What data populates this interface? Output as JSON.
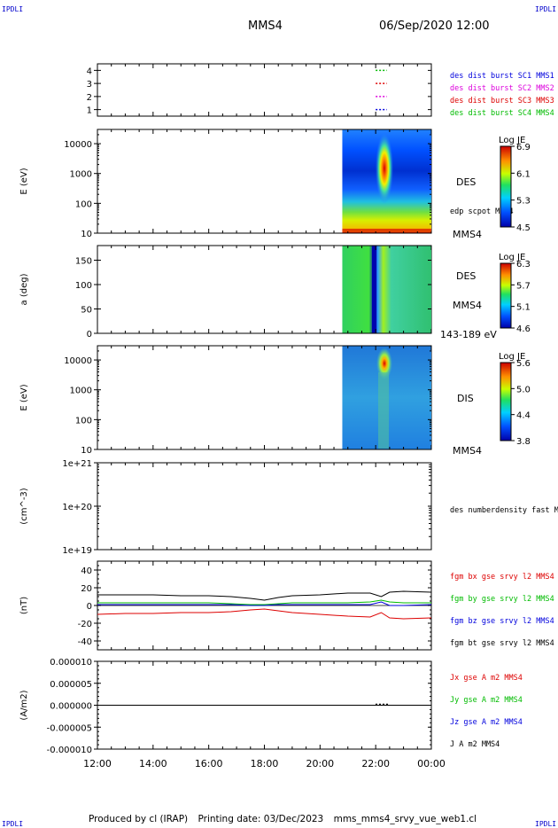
{
  "corner_tags": [
    "IPDLI",
    "IPDLI",
    "IPDLI",
    "IPDLI"
  ],
  "header": {
    "spacecraft": "MMS4",
    "datetime": "06/Sep/2020 12:00"
  },
  "footer": {
    "produced_by": "Produced by cl (IRAP)",
    "printing_date": "Printing date: 03/Dec/2023",
    "file": "mms_mms4_srvy_vue_web1.cl"
  },
  "colors": {
    "blue": "#0000dd",
    "magenta": "#dd00dd",
    "red": "#dd0000",
    "green": "#00bb00",
    "black": "#000000"
  },
  "chart_data": [
    {
      "type": "scatter",
      "panel": "burst-availability",
      "xlabel": "",
      "ylabel": "",
      "ylim": [
        0.5,
        4.5
      ],
      "yticks": [
        "1",
        "2",
        "3",
        "4"
      ],
      "xticks": [
        "12:00",
        "14:00",
        "16:00",
        "18:00",
        "20:00",
        "22:00",
        "00:00"
      ],
      "x_range_hours": [
        12,
        24
      ],
      "series": [
        {
          "name": "des dist burst SC1 MMS1",
          "color": "#0000dd",
          "level": 1,
          "segments": [
            [
              22.0,
              22.4
            ]
          ]
        },
        {
          "name": "des dist burst SC2 MMS2",
          "color": "#dd00dd",
          "level": 2,
          "segments": [
            [
              22.0,
              22.4
            ]
          ]
        },
        {
          "name": "des dist burst SC3 MMS3",
          "color": "#dd0000",
          "level": 3,
          "segments": [
            [
              22.0,
              22.4
            ]
          ]
        },
        {
          "name": "des dist burst SC4 MMS4",
          "color": "#00bb00",
          "level": 4,
          "segments": [
            [
              22.0,
              22.4
            ]
          ]
        }
      ]
    },
    {
      "type": "heatmap",
      "panel": "des-energy",
      "ylabel": "E (eV)",
      "yscale": "log",
      "yticks": [
        "10",
        "100",
        "1000",
        "10000"
      ],
      "ylim": [
        10,
        30000
      ],
      "data_start_hour": 20.8,
      "instrument": "DES",
      "overlay": "edp scpot MMS4",
      "spacecraft": "MMS4",
      "colorbar": {
        "title": "Log JE",
        "ticks": [
          "4.5",
          "5.3",
          "6.1",
          "6.9"
        ]
      }
    },
    {
      "type": "heatmap",
      "panel": "des-pitch-angle",
      "ylabel": "a (deg)",
      "yticks": [
        "0",
        "50",
        "100",
        "150"
      ],
      "ylim": [
        0,
        180
      ],
      "data_start_hour": 20.8,
      "instrument": "DES",
      "spacecraft": "MMS4",
      "energy_range": "143-189 eV",
      "colorbar": {
        "title": "Log JE",
        "ticks": [
          "4.6",
          "5.1",
          "5.7",
          "6.3"
        ]
      }
    },
    {
      "type": "heatmap",
      "panel": "dis-energy",
      "ylabel": "E (eV)",
      "yscale": "log",
      "yticks": [
        "10",
        "100",
        "1000",
        "10000"
      ],
      "ylim": [
        10,
        30000
      ],
      "data_start_hour": 20.8,
      "instrument": "DIS",
      "spacecraft": "MMS4",
      "colorbar": {
        "title": "Log JE",
        "ticks": [
          "3.8",
          "4.4",
          "5.0",
          "5.6"
        ]
      }
    },
    {
      "type": "line",
      "panel": "density",
      "ylabel": "(cm^-3)",
      "yscale": "log",
      "yticks": [
        "1e+19",
        "1e+20",
        "1e+21"
      ],
      "series": [
        {
          "name": "des numberdensity fast M",
          "color": "#000000",
          "values": []
        }
      ]
    },
    {
      "type": "line",
      "panel": "magnetic-field",
      "ylabel": "(nT)",
      "yticks": [
        "-40",
        "-20",
        "0",
        "20",
        "40"
      ],
      "ylim": [
        -50,
        50
      ],
      "x": [
        12,
        13,
        14,
        15,
        16,
        16.8,
        17.5,
        18,
        18.5,
        19,
        20,
        21,
        21.8,
        22.2,
        22.5,
        23,
        24
      ],
      "series": [
        {
          "name": "fgm bx gse srvy l2 MMS4",
          "color": "#dd0000",
          "values": [
            -10,
            -9,
            -9,
            -8,
            -8,
            -7,
            -5,
            -4,
            -6,
            -8,
            -10,
            -12,
            -13,
            -8,
            -14,
            -15,
            -14
          ]
        },
        {
          "name": "fgm by gse srvy l2 MMS4",
          "color": "#00bb00",
          "values": [
            3,
            3,
            3,
            3,
            3,
            2,
            1,
            1,
            2,
            3,
            3,
            3,
            4,
            6,
            4,
            3,
            3
          ]
        },
        {
          "name": "fgm bz gse srvy l2 MMS4",
          "color": "#0000dd",
          "values": [
            1,
            1,
            1,
            1,
            1,
            1,
            0,
            0,
            1,
            1,
            1,
            1,
            1,
            4,
            0,
            0,
            1
          ]
        },
        {
          "name": "fgm bt gse srvy l2 MMS4",
          "color": "#000000",
          "values": [
            12,
            12,
            12,
            11,
            11,
            10,
            8,
            6,
            9,
            11,
            12,
            14,
            14,
            10,
            15,
            16,
            15
          ]
        }
      ]
    },
    {
      "type": "line",
      "panel": "current-density",
      "ylabel": "(A/m2)",
      "yticks": [
        "-0.000010",
        "-0.000005",
        "0.000000",
        "0.000005",
        "0.000010"
      ],
      "ylim": [
        -1e-05,
        1e-05
      ],
      "series": [
        {
          "name": "Jx gse A m2 MMS4",
          "color": "#dd0000",
          "values": []
        },
        {
          "name": "Jy gse A m2 MMS4",
          "color": "#00bb00",
          "values": []
        },
        {
          "name": "Jz gse A m2 MMS4",
          "color": "#0000dd",
          "values": []
        },
        {
          "name": "J A m2 MMS4",
          "color": "#000000",
          "values": []
        }
      ]
    }
  ]
}
